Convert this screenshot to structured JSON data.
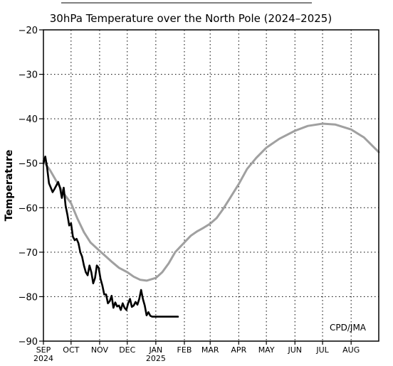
{
  "header": {
    "title": "30hPa Temperature over the North Pole (2024–2025)"
  },
  "credit": "CPD/JMA",
  "chart_data": {
    "type": "line",
    "title": "30hPa Temperature over the North Pole (2024–2025)",
    "xlabel": "",
    "ylabel": "Temperature",
    "ylim": [
      -90,
      -20
    ],
    "yticks": [
      -90,
      -80,
      -70,
      -60,
      -50,
      -40,
      -30,
      -20
    ],
    "ytick_labels": [
      "−90",
      "−80",
      "−70",
      "−60",
      "−50",
      "−40",
      "−30",
      "−20"
    ],
    "xlim": [
      "2024-09-01",
      "2025-08-31"
    ],
    "x_ticks": [
      {
        "date": "2024-09-01",
        "label": "SEP",
        "year": "2024"
      },
      {
        "date": "2024-10-01",
        "label": "OCT",
        "year": ""
      },
      {
        "date": "2024-11-01",
        "label": "NOV",
        "year": ""
      },
      {
        "date": "2024-12-01",
        "label": "DEC",
        "year": ""
      },
      {
        "date": "2025-01-01",
        "label": "JAN",
        "year": "2025"
      },
      {
        "date": "2025-02-01",
        "label": "FEB",
        "year": ""
      },
      {
        "date": "2025-03-01",
        "label": "MAR",
        "year": ""
      },
      {
        "date": "2025-04-01",
        "label": "APR",
        "year": ""
      },
      {
        "date": "2025-05-01",
        "label": "MAY",
        "year": ""
      },
      {
        "date": "2025-06-01",
        "label": "JUN",
        "year": ""
      },
      {
        "date": "2025-07-01",
        "label": "JUL",
        "year": ""
      },
      {
        "date": "2025-08-01",
        "label": "AUG",
        "year": ""
      }
    ],
    "grid": true,
    "series": [
      {
        "color": "#a0a0a0",
        "x": [
          "2024-09-01",
          "2024-09-08",
          "2024-09-15",
          "2024-09-22",
          "2024-10-01",
          "2024-10-08",
          "2024-10-15",
          "2024-10-22",
          "2024-11-01",
          "2024-11-08",
          "2024-11-15",
          "2024-11-22",
          "2024-12-01",
          "2024-12-08",
          "2024-12-15",
          "2024-12-22",
          "2025-01-01",
          "2025-01-08",
          "2025-01-15",
          "2025-01-22",
          "2025-02-01",
          "2025-02-08",
          "2025-02-15",
          "2025-02-22",
          "2025-03-01",
          "2025-03-08",
          "2025-03-15",
          "2025-03-22",
          "2025-04-01",
          "2025-04-10",
          "2025-04-20",
          "2025-05-01",
          "2025-05-15",
          "2025-06-01",
          "2025-06-15",
          "2025-07-01",
          "2025-07-15",
          "2025-08-01",
          "2025-08-15",
          "2025-08-31"
        ],
        "values": [
          -49.5,
          -51.5,
          -54.0,
          -56.5,
          -59.0,
          -62.5,
          -65.5,
          -67.8,
          -69.7,
          -71.0,
          -72.3,
          -73.5,
          -74.5,
          -75.5,
          -76.2,
          -76.4,
          -75.8,
          -74.5,
          -72.5,
          -70.0,
          -67.8,
          -66.3,
          -65.3,
          -64.5,
          -63.6,
          -62.3,
          -60.3,
          -58.0,
          -54.7,
          -51.3,
          -48.8,
          -46.5,
          -44.5,
          -42.7,
          -41.6,
          -41.1,
          -41.3,
          -42.4,
          -44.2,
          -47.5
        ]
      },
      {
        "color": "#000000",
        "x": [
          "2024-09-01",
          "2024-09-03",
          "2024-09-05",
          "2024-09-07",
          "2024-09-09",
          "2024-09-11",
          "2024-09-13",
          "2024-09-15",
          "2024-09-17",
          "2024-09-19",
          "2024-09-21",
          "2024-09-23",
          "2024-09-25",
          "2024-09-27",
          "2024-09-29",
          "2024-10-01",
          "2024-10-03",
          "2024-10-05",
          "2024-10-07",
          "2024-10-09",
          "2024-10-11",
          "2024-10-13",
          "2024-10-15",
          "2024-10-17",
          "2024-10-19",
          "2024-10-21",
          "2024-10-23",
          "2024-10-25",
          "2024-10-27",
          "2024-10-29",
          "2024-10-31",
          "2024-11-02",
          "2024-11-04",
          "2024-11-06",
          "2024-11-08",
          "2024-11-10",
          "2024-11-12",
          "2024-11-14",
          "2024-11-16",
          "2024-11-18",
          "2024-11-20",
          "2024-11-22",
          "2024-11-24",
          "2024-11-26",
          "2024-11-28",
          "2024-11-30",
          "2024-12-02",
          "2024-12-04",
          "2024-12-06",
          "2024-12-08",
          "2024-12-10",
          "2024-12-12",
          "2024-12-14",
          "2024-12-16",
          "2024-12-18",
          "2024-12-20",
          "2024-12-22",
          "2024-12-24",
          "2024-12-26",
          "2024-12-28",
          "2024-12-30",
          "2025-01-01",
          "2025-01-03",
          "2025-01-05",
          "2025-01-07",
          "2025-01-09",
          "2025-01-11",
          "2025-01-13",
          "2025-01-15",
          "2025-01-17",
          "2025-01-19",
          "2025-01-21",
          "2025-01-23",
          "2025-01-25"
        ],
        "values": [
          -50.0,
          -48.5,
          -51.0,
          -54.5,
          -55.5,
          -56.5,
          -55.8,
          -55.0,
          -54.2,
          -55.5,
          -57.8,
          -55.5,
          -59.5,
          -61.5,
          -64.0,
          -63.5,
          -66.5,
          -67.3,
          -67.0,
          -68.0,
          -70.0,
          -71.0,
          -73.0,
          -74.5,
          -75.2,
          -73.0,
          -74.5,
          -77.0,
          -75.8,
          -73.0,
          -73.5,
          -76.0,
          -77.5,
          -79.5,
          -79.5,
          -81.5,
          -81.0,
          -79.8,
          -82.5,
          -81.3,
          -82.2,
          -82.0,
          -83.0,
          -81.5,
          -82.5,
          -83.0,
          -81.5,
          -80.5,
          -82.3,
          -82.0,
          -81.2,
          -81.8,
          -80.5,
          -78.5,
          -80.5,
          -82.0,
          -84.2,
          -83.5,
          -84.3,
          -84.5,
          -84.5,
          -84.5,
          -84.5,
          -84.5,
          -84.5,
          -84.5,
          -84.5,
          -84.5,
          -84.5,
          -84.5,
          -84.5,
          -84.5,
          -84.5,
          -84.5
        ]
      }
    ]
  }
}
